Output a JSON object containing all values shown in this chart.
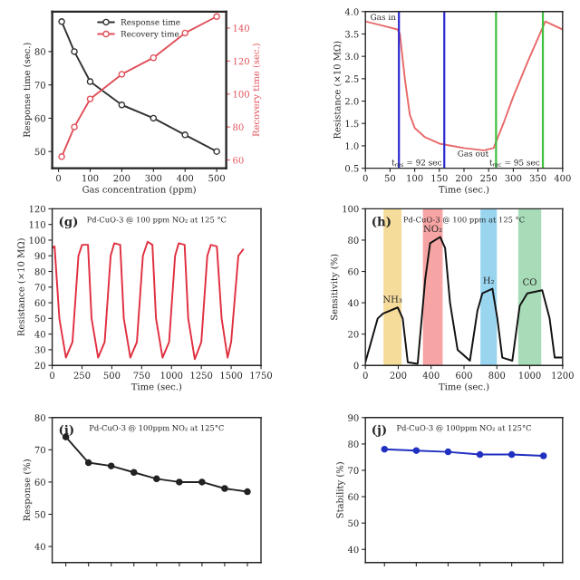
{
  "chart_data": [
    {
      "type": "line",
      "xlabel": "Gas concentration (ppm)",
      "ylabel": "Response time (sec.)",
      "y2label": "Recovery time (sec.)",
      "xlim": [
        -20,
        530
      ],
      "xticks": [
        0,
        100,
        200,
        300,
        400,
        500
      ],
      "ylim": [
        45,
        92
      ],
      "yticks": [
        50,
        60,
        70,
        80
      ],
      "y2lim": [
        55,
        150
      ],
      "y2ticks": [
        60,
        80,
        100,
        120,
        140
      ],
      "legend": "top",
      "marker": "circle",
      "grid": false,
      "series": [
        {
          "name": "Response time",
          "color": "#333333",
          "x": [
            10,
            50,
            100,
            200,
            300,
            400,
            500
          ],
          "values": [
            89,
            80,
            71,
            64,
            60,
            55,
            50
          ]
        },
        {
          "name": "Recovery time",
          "color": "#e0505a",
          "axis": "y2",
          "x": [
            10,
            50,
            100,
            200,
            300,
            400,
            500
          ],
          "values": [
            62,
            80,
            97,
            112,
            122,
            137,
            147
          ]
        }
      ]
    },
    {
      "type": "line",
      "xlabel": "Time (sec.)",
      "ylabel": "Resistance (×10 MΩ)",
      "xlim": [
        0,
        400
      ],
      "xticks": [
        0,
        50,
        100,
        150,
        200,
        250,
        300,
        350,
        400
      ],
      "ylim": [
        0.5,
        4.0
      ],
      "yticks": [
        0.5,
        {
          "value": 1,
          "label": "1.0"
        },
        1.5,
        {
          "value": 2,
          "label": "2.0"
        },
        2.5,
        {
          "value": 3,
          "label": "3.0"
        },
        3.5,
        {
          "value": 4,
          "label": "4.0"
        }
      ],
      "grid": false,
      "series": [
        {
          "color": "#e86a6a",
          "x": [
            0,
            30,
            65,
            70,
            80,
            90,
            100,
            120,
            150,
            200,
            240,
            260,
            280,
            300,
            330,
            365,
            400
          ],
          "values": [
            3.78,
            3.7,
            3.6,
            3.5,
            2.5,
            1.7,
            1.4,
            1.2,
            1.05,
            0.95,
            0.9,
            0.95,
            1.5,
            2.1,
            2.9,
            3.78,
            3.6
          ]
        }
      ],
      "ref_lines": [
        {
          "axis": "x",
          "value": 68,
          "color": "#2b2bd0"
        },
        {
          "axis": "x",
          "value": 160,
          "color": "#2b2bd0"
        },
        {
          "axis": "x",
          "value": 265,
          "color": "#40c040"
        },
        {
          "axis": "x",
          "value": 360,
          "color": "#40c040"
        }
      ],
      "annotations": [
        {
          "text": "Gas in",
          "x": 62,
          "y": 3.95
        },
        {
          "text": "Gas out",
          "x": 250,
          "y": 0.9
        },
        {
          "text": "t$_{res}$ = 92 sec",
          "x": 155,
          "y": 0.7
        },
        {
          "text": "t$_{rec}$ = 95 sec",
          "x": 354,
          "y": 0.7
        }
      ]
    },
    {
      "type": "line",
      "title": "Pd-CuO-3 @ 100 ppm NO₂ at 125 °C",
      "xlabel": "Time (sec.)",
      "ylabel": "Resistance (×10 MΩ)",
      "xlim": [
        0,
        1750
      ],
      "xticks": [
        0,
        250,
        500,
        750,
        1000,
        1250,
        1500,
        1750
      ],
      "ylim": [
        20,
        120
      ],
      "yticks": [
        20,
        30,
        40,
        50,
        60,
        70,
        80,
        90,
        100,
        110,
        120
      ],
      "grid": false,
      "annotations": [
        "(g)"
      ],
      "series": [
        {
          "color": "#e03040",
          "x": [
            0,
            20,
            60,
            115,
            170,
            220,
            250,
            300,
            330,
            385,
            440,
            490,
            520,
            570,
            600,
            655,
            710,
            760,
            800,
            840,
            870,
            925,
            980,
            1030,
            1060,
            1110,
            1140,
            1195,
            1250,
            1300,
            1330,
            1380,
            1420,
            1470,
            1500,
            1560,
            1600
          ],
          "values": [
            95,
            96,
            50,
            25,
            35,
            90,
            97,
            97,
            50,
            25,
            35,
            90,
            98,
            97,
            50,
            25,
            35,
            90,
            99,
            97,
            50,
            25,
            35,
            90,
            98,
            97,
            50,
            24,
            35,
            90,
            97,
            96,
            50,
            25,
            35,
            90,
            94
          ]
        }
      ]
    },
    {
      "type": "line",
      "title": "Pd-CuO-3 @ 100 ppm at 125 °C",
      "xlabel": "Time (sec.)",
      "ylabel": "Sensitivity (%)",
      "xlim": [
        0,
        1200
      ],
      "xticks": [
        0,
        200,
        400,
        600,
        800,
        1000,
        1200
      ],
      "ylim": [
        0,
        100
      ],
      "yticks": [
        0,
        20,
        40,
        60,
        80,
        100
      ],
      "grid": false,
      "annotations": [
        "(h)"
      ],
      "bands": [
        {
          "axis": "x",
          "from": 110,
          "to": 220,
          "label": "NH₃",
          "color": "#f5d890"
        },
        {
          "axis": "x",
          "from": 350,
          "to": 470,
          "label": "NO₂",
          "color": "#f59a9a"
        },
        {
          "axis": "x",
          "from": 700,
          "to": 800,
          "label": "H₂",
          "color": "#8fd0ee"
        },
        {
          "axis": "x",
          "from": 930,
          "to": 1070,
          "label": "CO",
          "color": "#9fd8b0"
        }
      ],
      "series": [
        {
          "color": "#111111",
          "x": [
            0,
            75,
            106,
            197,
            227,
            258,
            318,
            364,
            394,
            455,
            485,
            515,
            561,
            636,
            682,
            712,
            773,
            803,
            833,
            894,
            939,
            985,
            1076,
            1121,
            1152,
            1197
          ],
          "values": [
            2,
            30,
            33,
            37,
            30,
            2,
            1,
            55,
            78,
            82,
            75,
            40,
            10,
            3,
            35,
            46,
            49,
            30,
            5,
            3,
            38,
            46,
            48,
            30,
            5,
            5
          ]
        }
      ]
    },
    {
      "type": "line",
      "title": "Pd-CuO-3 @ 100ppm NO₂ at 125°C",
      "ylabel": "Response (%)",
      "categories": [
        null,
        null,
        null,
        null,
        null,
        null,
        null,
        null,
        null
      ],
      "ylim": [
        35,
        80
      ],
      "yticks": [
        40,
        50,
        60,
        70,
        80
      ],
      "tick_labels": "y",
      "marker": "circle",
      "grid": false,
      "annotations": [
        "(i)"
      ],
      "series": [
        {
          "color": "#222222",
          "values": [
            74,
            66,
            65,
            63,
            61,
            60,
            60,
            58,
            57
          ]
        }
      ]
    },
    {
      "type": "line",
      "title": "Pd-CuO-3 @ 100ppm NO₂ at 125°C",
      "ylabel": "Stability (%)",
      "categories": [
        null,
        null,
        null,
        null,
        null,
        null
      ],
      "ylim": [
        35,
        90
      ],
      "yticks": [
        40,
        50,
        60,
        70,
        80,
        90
      ],
      "tick_labels": "y",
      "marker": "circle",
      "grid": false,
      "annotations": [
        "(j)"
      ],
      "series": [
        {
          "color": "#2030c0",
          "values": [
            78,
            77.5,
            77,
            76,
            76,
            75.5
          ]
        }
      ]
    }
  ]
}
